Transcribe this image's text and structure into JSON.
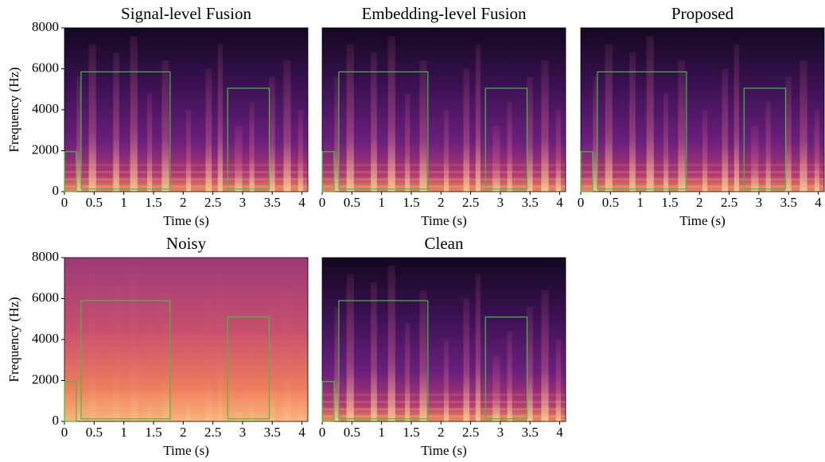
{
  "chart_data": [
    {
      "type": "spectrogram",
      "title": "Signal-level Fusion",
      "xlabel": "Time (s)",
      "ylabel": "Frequency (Hz)",
      "xlim": [
        0,
        4.1
      ],
      "ylim": [
        0,
        8000
      ],
      "xticks": [
        0,
        0.5,
        1,
        1.5,
        2,
        2.5,
        3,
        3.5,
        4
      ],
      "yticks": [
        0,
        2000,
        4000,
        6000,
        8000
      ],
      "noisy": false,
      "box_color": "#3cc23c",
      "boxes": [
        {
          "x": [
            0,
            0.2
          ],
          "y": [
            0,
            1950
          ]
        },
        {
          "x": [
            0.28,
            1.78
          ],
          "y": [
            130,
            5850
          ]
        },
        {
          "x": [
            2.75,
            3.45
          ],
          "y": [
            130,
            5050
          ]
        }
      ]
    },
    {
      "type": "spectrogram",
      "title": "Embedding-level Fusion",
      "xlabel": "Time (s)",
      "xlim": [
        0,
        4.1
      ],
      "ylim": [
        0,
        8000
      ],
      "xticks": [
        0,
        0.5,
        1,
        1.5,
        2,
        2.5,
        3,
        3.5,
        4
      ],
      "noisy": false,
      "box_color": "#3cc23c",
      "boxes": [
        {
          "x": [
            0,
            0.2
          ],
          "y": [
            0,
            1950
          ]
        },
        {
          "x": [
            0.28,
            1.78
          ],
          "y": [
            130,
            5850
          ]
        },
        {
          "x": [
            2.75,
            3.45
          ],
          "y": [
            130,
            5050
          ]
        }
      ]
    },
    {
      "type": "spectrogram",
      "title": "Proposed",
      "xlabel": "Time (s)",
      "xlim": [
        0,
        4.1
      ],
      "ylim": [
        0,
        8000
      ],
      "xticks": [
        0,
        0.5,
        1,
        1.5,
        2,
        2.5,
        3,
        3.5,
        4
      ],
      "noisy": false,
      "box_color": "#3cc23c",
      "boxes": [
        {
          "x": [
            0,
            0.2
          ],
          "y": [
            0,
            1950
          ]
        },
        {
          "x": [
            0.28,
            1.78
          ],
          "y": [
            130,
            5850
          ]
        },
        {
          "x": [
            2.75,
            3.45
          ],
          "y": [
            130,
            5050
          ]
        }
      ]
    },
    {
      "type": "spectrogram",
      "title": "Noisy",
      "xlabel": "Time (s)",
      "ylabel": "Frequency (Hz)",
      "xlim": [
        0,
        4.1
      ],
      "ylim": [
        0,
        8000
      ],
      "xticks": [
        0,
        0.5,
        1,
        1.5,
        2,
        2.5,
        3,
        3.5,
        4
      ],
      "yticks": [
        0,
        2000,
        4000,
        6000,
        8000
      ],
      "noisy": true,
      "box_color": "#3cc23c",
      "boxes": [
        {
          "x": [
            0,
            0.2
          ],
          "y": [
            0,
            1950
          ]
        },
        {
          "x": [
            0.28,
            1.78
          ],
          "y": [
            130,
            5900
          ]
        },
        {
          "x": [
            2.75,
            3.45
          ],
          "y": [
            130,
            5100
          ]
        }
      ]
    },
    {
      "type": "spectrogram",
      "title": "Clean",
      "xlabel": "Time (s)",
      "xlim": [
        0,
        4.1
      ],
      "ylim": [
        0,
        8000
      ],
      "xticks": [
        0,
        0.5,
        1,
        1.5,
        2,
        2.5,
        3,
        3.5,
        4
      ],
      "noisy": false,
      "box_color": "#3cc23c",
      "boxes": [
        {
          "x": [
            0,
            0.2
          ],
          "y": [
            0,
            1950
          ]
        },
        {
          "x": [
            0.28,
            1.78
          ],
          "y": [
            130,
            5900
          ]
        },
        {
          "x": [
            2.75,
            3.45
          ],
          "y": [
            130,
            5100
          ]
        }
      ]
    }
  ]
}
